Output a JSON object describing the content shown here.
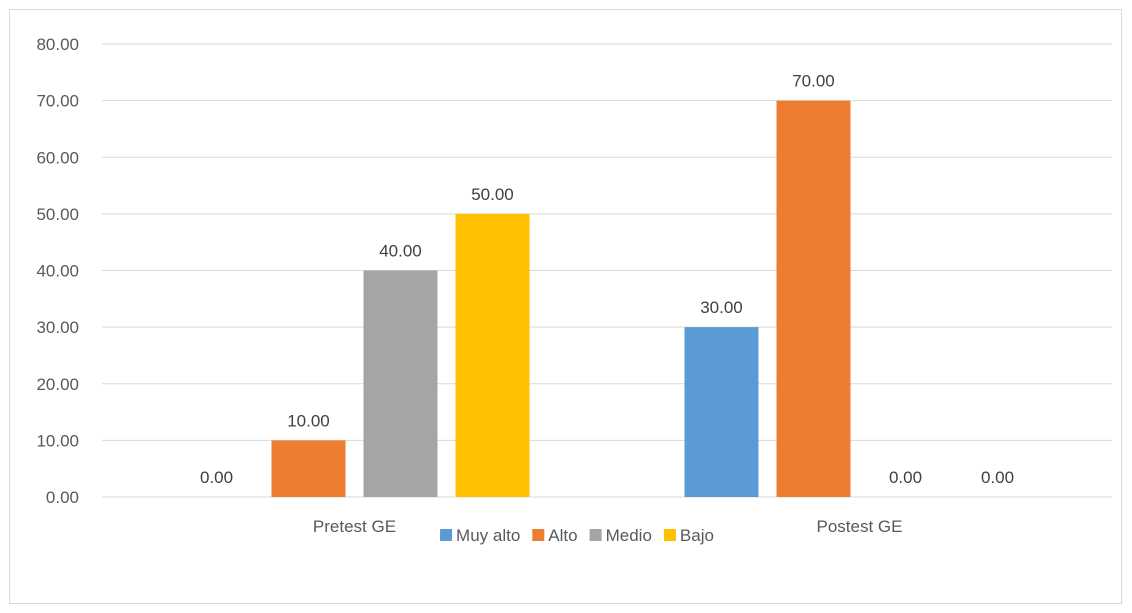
{
  "chart_data": {
    "type": "bar",
    "categories": [
      "Pretest GE",
      "Postest GE"
    ],
    "series": [
      {
        "name": "Muy alto",
        "values": [
          0.0,
          30.0
        ],
        "color": "#5b9bd5"
      },
      {
        "name": "Alto",
        "values": [
          10.0,
          70.0
        ],
        "color": "#ed7d31"
      },
      {
        "name": "Medio",
        "values": [
          40.0,
          0.0
        ],
        "color": "#a5a5a5"
      },
      {
        "name": "Bajo",
        "values": [
          50.0,
          0.0
        ],
        "color": "#ffc000"
      }
    ],
    "ylim": [
      0,
      80
    ],
    "yticks": [
      "0.00",
      "10.00",
      "20.00",
      "30.00",
      "40.00",
      "50.00",
      "60.00",
      "70.00",
      "80.00"
    ],
    "data_labels": [
      [
        "0.00",
        "10.00",
        "40.00",
        "50.00"
      ],
      [
        "30.00",
        "70.00",
        "0.00",
        "0.00"
      ]
    ],
    "grid": true,
    "legend_position": "bottom",
    "gridline_color": "#d9d9d9"
  }
}
